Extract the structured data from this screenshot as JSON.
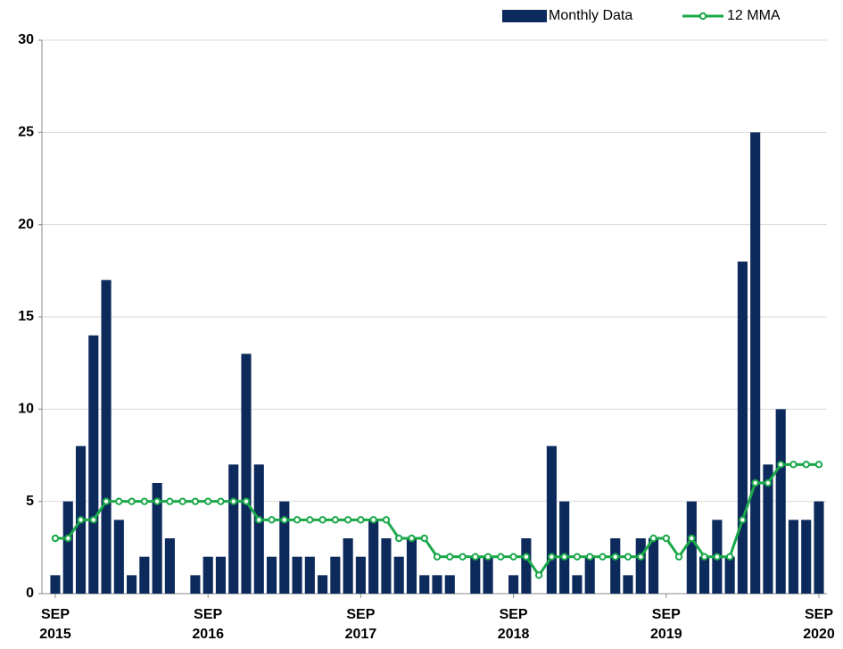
{
  "chart_data": {
    "type": "bar-line",
    "categories": [
      "SEP 2015",
      null,
      null,
      null,
      null,
      null,
      null,
      null,
      null,
      null,
      null,
      null,
      "SEP 2016",
      null,
      null,
      null,
      null,
      null,
      null,
      null,
      null,
      null,
      null,
      null,
      "SEP 2017",
      null,
      null,
      null,
      null,
      null,
      null,
      null,
      null,
      null,
      null,
      null,
      "SEP 2018",
      null,
      null,
      null,
      null,
      null,
      null,
      null,
      null,
      null,
      null,
      null,
      "SEP 2019",
      null,
      null,
      null,
      null,
      null,
      null,
      null,
      null,
      null,
      null,
      null,
      "SEP 2020"
    ],
    "series": [
      {
        "name": "Monthly Data",
        "type": "bar",
        "color": "#0d2a5c",
        "values": [
          1,
          5,
          8,
          14,
          17,
          4,
          1,
          2,
          6,
          3,
          0,
          1,
          2,
          2,
          7,
          13,
          7,
          2,
          5,
          2,
          2,
          1,
          2,
          3,
          2,
          4,
          3,
          2,
          3,
          1,
          1,
          1,
          0,
          2,
          2,
          0,
          1,
          3,
          0,
          8,
          5,
          1,
          2,
          0,
          3,
          1,
          3,
          3,
          0,
          0,
          5,
          2,
          4,
          2,
          18,
          25,
          7,
          10,
          4,
          4,
          5
        ]
      },
      {
        "name": "12 MMA",
        "type": "line",
        "color": "#1aa84a",
        "values": [
          3,
          3,
          4,
          4,
          5,
          5,
          5,
          5,
          5,
          5,
          5,
          5,
          5,
          5,
          5,
          5,
          4,
          4,
          4,
          4,
          4,
          4,
          4,
          4,
          4,
          4,
          4,
          3,
          3,
          3,
          2,
          2,
          2,
          2,
          2,
          2,
          2,
          2,
          1,
          2,
          2,
          2,
          2,
          2,
          2,
          2,
          2,
          3,
          3,
          2,
          3,
          2,
          2,
          2,
          4,
          6,
          6,
          7,
          7,
          7,
          7
        ]
      }
    ],
    "ylim": [
      0,
      30
    ],
    "yticks": [
      0,
      5,
      10,
      15,
      20,
      25,
      30
    ],
    "grid": true,
    "legend": "top-right"
  }
}
